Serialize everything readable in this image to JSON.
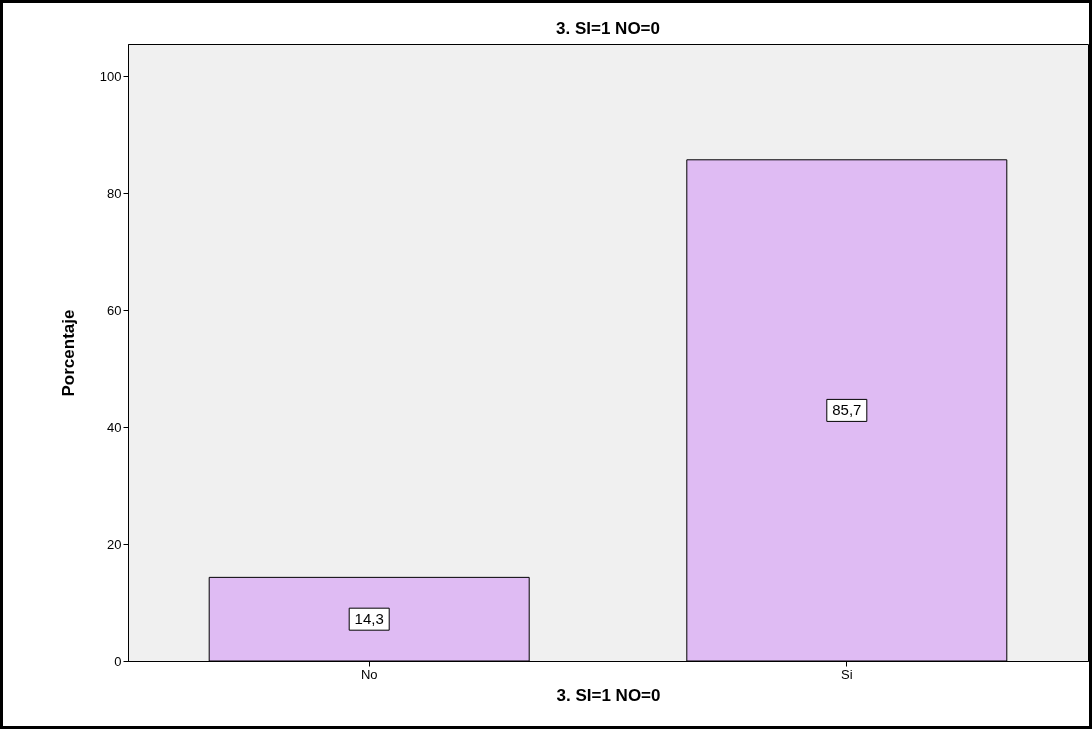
{
  "chart_data": {
    "type": "bar",
    "title": "3. SI=1 NO=0",
    "xlabel": "3. SI=1 NO=0",
    "ylabel": "Porcentaje",
    "categories": [
      "No",
      "Si"
    ],
    "values": [
      14.3,
      85.7
    ],
    "value_labels": [
      "14,3",
      "85,7"
    ],
    "color": "#dfbbf3",
    "ylim": [
      0,
      105.5
    ],
    "yticks": [
      0,
      20,
      40,
      60,
      80,
      100
    ],
    "grid": false
  }
}
